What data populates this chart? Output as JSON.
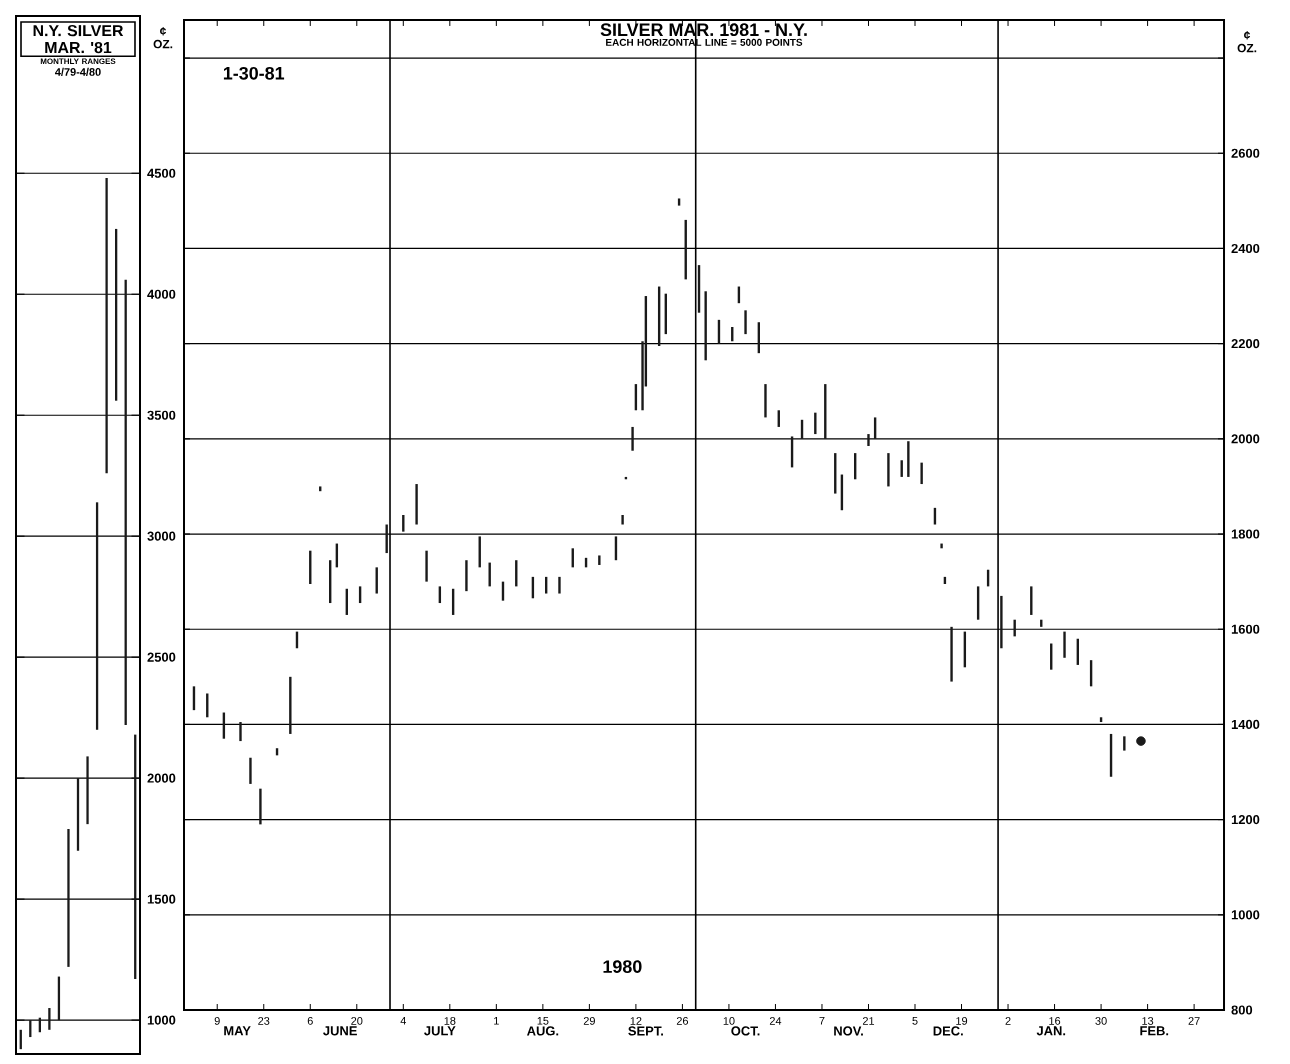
{
  "chart_data": [
    {
      "type": "bar",
      "title": "N.Y. SILVER MAR. '81",
      "subtitle": "MONTHLY RANGES",
      "ylabel": "¢ OZ.",
      "annotations": [
        "4/79-4/80"
      ],
      "categories": [
        null,
        null,
        null,
        null,
        null,
        null,
        null,
        null,
        null,
        null,
        null,
        null,
        null
      ],
      "base": [
        880,
        930,
        950,
        960,
        1000,
        1220,
        1700,
        1810,
        2200,
        3260,
        3560,
        2220,
        1170
      ],
      "values": [
        80,
        70,
        60,
        90,
        180,
        570,
        300,
        280,
        940,
        1220,
        710,
        1840,
        1010
      ],
      "color": "#1a1a1a",
      "ylim": [
        860,
        5150
      ],
      "yticks": [
        1000,
        1500,
        2000,
        2500,
        3000,
        3500,
        4000,
        4500
      ],
      "grid": "y",
      "tick_labels": "y"
    },
    {
      "type": "bar",
      "title": "SILVER MAR. 1981 - N.Y.",
      "subtitle": "EACH HORIZONTAL LINE = 5000 POINTS",
      "ylabel": "¢ OZ.",
      "annotations": [
        "1-30-81",
        "1980",
        "MAY",
        "JUNE",
        "JULY",
        "AUG.",
        "SEPT.",
        "OCT.",
        "NOV.",
        "DEC.",
        "JAN.",
        "FEB."
      ],
      "series": [
        {
          "color": "#1a1a1a",
          "x": [
            "1980-05-02",
            "1980-05-06",
            "1980-05-11",
            "1980-05-16",
            "1980-05-19",
            "1980-05-22",
            "1980-05-27",
            "1980-05-31",
            "1980-06-02",
            "1980-06-06",
            "1980-06-09",
            "1980-06-12",
            "1980-06-14",
            "1980-06-17",
            "1980-06-21",
            "1980-06-26",
            "1980-06-29",
            "1980-07-04",
            "1980-07-08",
            "1980-07-11",
            "1980-07-15",
            "1980-07-19",
            "1980-07-23",
            "1980-07-27",
            "1980-07-30",
            "1980-08-03",
            "1980-08-07",
            "1980-08-12",
            "1980-08-16",
            "1980-08-20",
            "1980-08-24",
            "1980-08-28",
            "1980-09-01",
            "1980-09-06",
            "1980-09-08",
            "1980-09-09",
            "1980-09-11",
            "1980-09-12",
            "1980-09-14",
            "1980-09-15",
            "1980-09-19",
            "1980-09-21",
            "1980-09-25",
            "1980-09-27",
            "1980-10-01",
            "1980-10-03",
            "1980-10-07",
            "1980-10-11",
            "1980-10-13",
            "1980-10-15",
            "1980-10-19",
            "1980-10-21",
            "1980-10-25",
            "1980-10-29",
            "1980-11-01",
            "1980-11-05",
            "1980-11-08",
            "1980-11-11",
            "1980-11-13",
            "1980-11-17",
            "1980-11-21",
            "1980-11-23",
            "1980-11-27",
            "1980-12-01",
            "1980-12-03",
            "1980-12-07",
            "1980-12-11",
            "1980-12-13",
            "1980-12-14",
            "1980-12-16",
            "1980-12-20",
            "1980-12-24",
            "1980-12-27",
            "1980-12-31",
            "1981-01-04",
            "1981-01-09",
            "1981-01-12",
            "1981-01-15",
            "1981-01-19",
            "1981-01-23",
            "1981-01-27",
            "1981-01-30",
            "1981-02-02",
            "1981-02-06"
          ],
          "base": [
            1430,
            1415,
            1370,
            1365,
            1275,
            1190,
            1335,
            1380,
            1560,
            1695,
            1890,
            1655,
            1730,
            1630,
            1655,
            1675,
            1760,
            1805,
            1820,
            1700,
            1655,
            1630,
            1680,
            1730,
            1690,
            1660,
            1690,
            1665,
            1675,
            1675,
            1730,
            1730,
            1735,
            1745,
            1820,
            1915,
            1975,
            2060,
            2060,
            2110,
            2195,
            2220,
            2490,
            2335,
            2265,
            2165,
            2200,
            2205,
            2285,
            2220,
            2180,
            2045,
            2025,
            1940,
            2000,
            2010,
            2000,
            1885,
            1850,
            1915,
            1985,
            2000,
            1900,
            1920,
            1920,
            1905,
            1820,
            1770,
            1695,
            1490,
            1520,
            1620,
            1690,
            1560,
            1585,
            1630,
            1605,
            1515,
            1540,
            1525,
            1480,
            1405,
            1290,
            1345
          ],
          "values": [
            50,
            50,
            55,
            40,
            55,
            75,
            15,
            120,
            35,
            70,
            10,
            90,
            50,
            55,
            35,
            55,
            60,
            35,
            85,
            65,
            35,
            55,
            65,
            65,
            50,
            40,
            55,
            45,
            35,
            35,
            40,
            20,
            20,
            50,
            20,
            5,
            50,
            55,
            145,
            190,
            125,
            85,
            15,
            125,
            100,
            145,
            50,
            30,
            35,
            50,
            65,
            70,
            35,
            65,
            40,
            45,
            115,
            85,
            75,
            55,
            25,
            45,
            70,
            35,
            75,
            45,
            35,
            10,
            15,
            115,
            75,
            70,
            35,
            110,
            35,
            60,
            15,
            55,
            55,
            55,
            55,
            10,
            90,
            30
          ]
        },
        {
          "type": "scatter",
          "marker": "circle",
          "color": "#1a1a1a",
          "x": [
            "1981-02-11"
          ],
          "values": [
            1365
          ]
        }
      ],
      "xlim": [
        "1980-04-29",
        "1981-03-08"
      ],
      "xticks": [
        {
          "value": "1980-05-09",
          "label": "9"
        },
        {
          "value": "1980-05-23",
          "label": "23"
        },
        {
          "value": "1980-06-06",
          "label": "6"
        },
        {
          "value": "1980-06-20",
          "label": "20"
        },
        {
          "value": "1980-07-04",
          "label": "4"
        },
        {
          "value": "1980-07-18",
          "label": "18"
        },
        {
          "value": "1980-08-01",
          "label": "1"
        },
        {
          "value": "1980-08-15",
          "label": "15"
        },
        {
          "value": "1980-08-29",
          "label": "29"
        },
        {
          "value": "1980-09-12",
          "label": "12"
        },
        {
          "value": "1980-09-26",
          "label": "26"
        },
        {
          "value": "1980-10-10",
          "label": "10"
        },
        {
          "value": "1980-10-24",
          "label": "24"
        },
        {
          "value": "1980-11-07",
          "label": "7"
        },
        {
          "value": "1980-11-21",
          "label": "21"
        },
        {
          "value": "1980-12-05",
          "label": "5"
        },
        {
          "value": "1980-12-19",
          "label": "19"
        },
        {
          "value": "1981-01-02",
          "label": "2"
        },
        {
          "value": "1981-01-16",
          "label": "16"
        },
        {
          "value": "1981-01-30",
          "label": "30"
        },
        {
          "value": "1981-02-13",
          "label": "13"
        },
        {
          "value": "1981-02-27",
          "label": "27"
        }
      ],
      "ylim": [
        800,
        2880
      ],
      "yticks": [
        800,
        1000,
        1200,
        1400,
        1600,
        1800,
        2000,
        2200,
        2400,
        2600,
        {
          "value": 2800,
          "label": null
        }
      ],
      "grid": "y",
      "ref_lines": [
        {
          "axis": "x",
          "value": "1980-06-30"
        },
        {
          "axis": "x",
          "value": "1980-09-30"
        },
        {
          "axis": "x",
          "value": "1980-12-30"
        }
      ]
    }
  ]
}
